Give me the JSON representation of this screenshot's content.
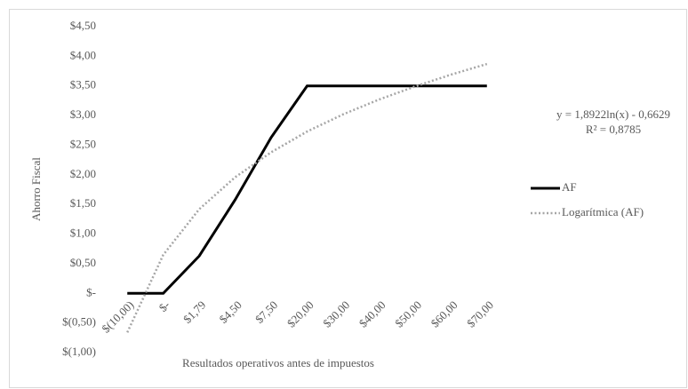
{
  "chart_data": {
    "type": "line",
    "x_label": "Resultados operativos antes de impuestos",
    "y_label": "Ahorro Fiscal",
    "categories": [
      "$(10,00)",
      "$-",
      "$1,79",
      "$4,50",
      "$7,50",
      "$20,00",
      "$30,00",
      "$40,00",
      "$50,00",
      "$60,00",
      "$70,00"
    ],
    "series": [
      {
        "name": "AF",
        "color": "#000000",
        "style": "solid",
        "values": [
          0,
          0,
          0.63,
          1.58,
          2.63,
          3.5,
          3.5,
          3.5,
          3.5,
          3.5,
          3.5
        ]
      },
      {
        "name": "Logarítmica (AF)",
        "color": "#a6a6a6",
        "style": "dotted",
        "values": [
          -0.66,
          0.65,
          1.42,
          1.96,
          2.38,
          2.73,
          3.02,
          3.27,
          3.49,
          3.69,
          3.87
        ]
      }
    ],
    "ylim": [
      -1,
      4.5
    ],
    "yticks": [
      {
        "value": -1,
        "label": "$(1,00)"
      },
      {
        "value": -0.5,
        "label": "$(0,50)"
      },
      {
        "value": 0,
        "label": "$-"
      },
      {
        "value": 0.5,
        "label": "$0,50"
      },
      {
        "value": 1,
        "label": "$1,00"
      },
      {
        "value": 1.5,
        "label": "$1,50"
      },
      {
        "value": 2,
        "label": "$2,00"
      },
      {
        "value": 2.5,
        "label": "$2,50"
      },
      {
        "value": 3,
        "label": "$3,00"
      },
      {
        "value": 3.5,
        "label": "$3,50"
      },
      {
        "value": 4,
        "label": "$4,00"
      },
      {
        "value": 4.5,
        "label": "$4,50"
      }
    ],
    "grid": false,
    "legend": "right",
    "annotations": [
      "y = 1,8922ln(x) - 0,6629",
      "R² = 0,8785"
    ]
  }
}
